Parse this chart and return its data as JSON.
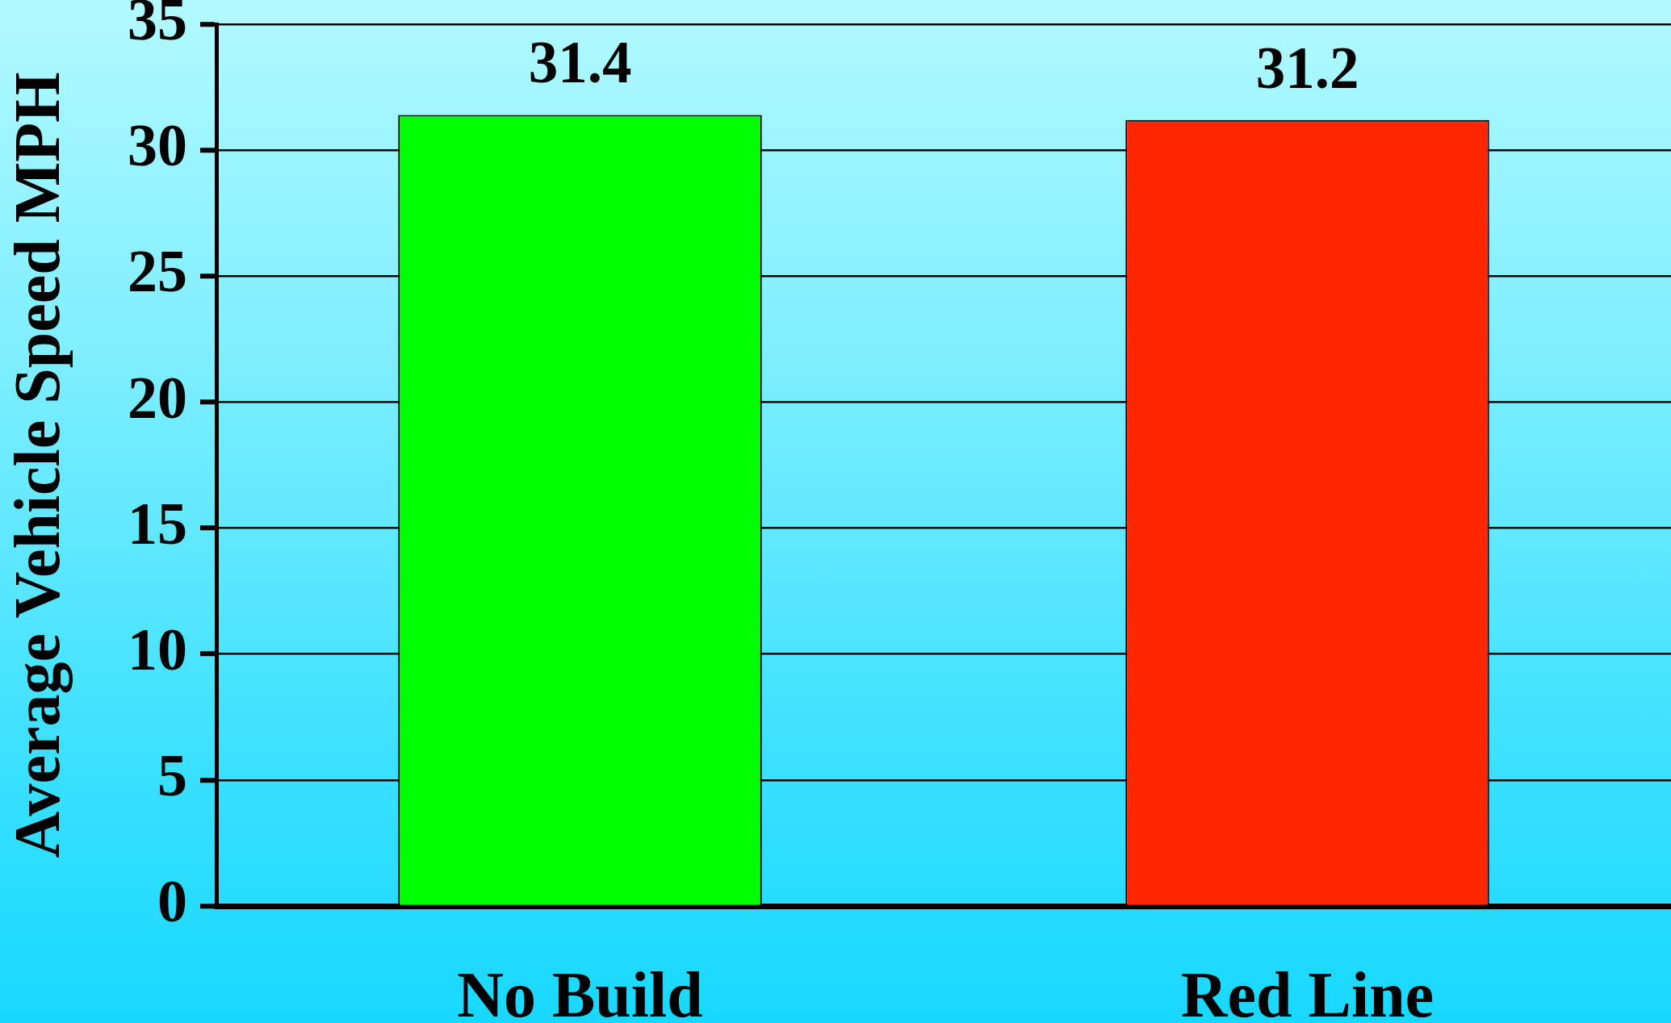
{
  "chart_data": {
    "type": "bar",
    "ylabel": "Average Vehicle Speed MPH",
    "categories": [
      "No Build",
      "Red Line"
    ],
    "values": [
      31.4,
      31.2
    ],
    "colors": [
      "#00ff00",
      "#ff2600"
    ],
    "ylim": [
      0,
      35
    ],
    "yticks": [
      0,
      5,
      10,
      15,
      20,
      25,
      30,
      35
    ],
    "grid": "y",
    "data_labels": true
  }
}
